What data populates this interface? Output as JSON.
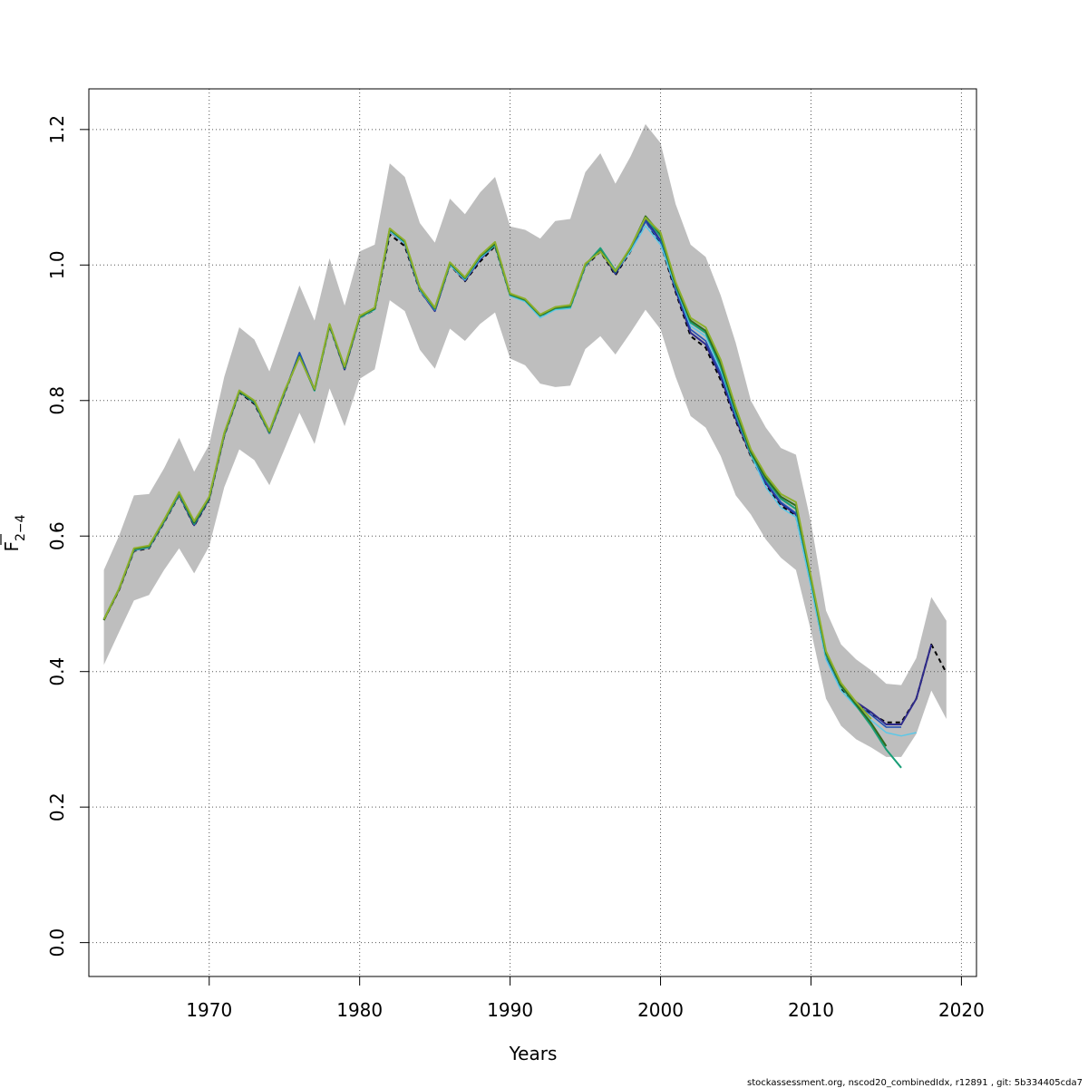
{
  "chart_data": {
    "type": "line",
    "title": "",
    "xlabel": "Years",
    "ylabel_base": "F",
    "ylabel_sub": "2−4",
    "xlim": [
      1962,
      2021
    ],
    "ylim": [
      -0.05,
      1.26
    ],
    "x_ticks": [
      1970,
      1980,
      1990,
      2000,
      2010,
      2020
    ],
    "y_ticks": [
      0.0,
      0.2,
      0.4,
      0.6,
      0.8,
      1.0,
      1.2
    ],
    "y_tick_labels": [
      "0.0",
      "0.2",
      "0.4",
      "0.6",
      "0.8",
      "1.0",
      "1.2"
    ],
    "grid": true,
    "confidence_band": {
      "x": [
        1963,
        1964,
        1965,
        1966,
        1967,
        1968,
        1969,
        1970,
        1971,
        1972,
        1973,
        1974,
        1975,
        1976,
        1977,
        1978,
        1979,
        1980,
        1981,
        1982,
        1983,
        1984,
        1985,
        1986,
        1987,
        1988,
        1989,
        1990,
        1991,
        1992,
        1993,
        1994,
        1995,
        1996,
        1997,
        1998,
        1999,
        2000,
        2001,
        2002,
        2003,
        2004,
        2005,
        2006,
        2007,
        2008,
        2009,
        2010,
        2011,
        2012,
        2013,
        2014,
        2015,
        2016,
        2017,
        2018,
        2019
      ],
      "upper": [
        0.55,
        0.6,
        0.66,
        0.662,
        0.7,
        0.745,
        0.695,
        0.735,
        0.835,
        0.908,
        0.89,
        0.843,
        0.906,
        0.97,
        0.918,
        1.01,
        0.94,
        1.02,
        1.03,
        1.15,
        1.13,
        1.062,
        1.033,
        1.098,
        1.075,
        1.107,
        1.13,
        1.057,
        1.052,
        1.039,
        1.065,
        1.068,
        1.137,
        1.165,
        1.12,
        1.16,
        1.208,
        1.18,
        1.09,
        1.03,
        1.012,
        0.955,
        0.885,
        0.8,
        0.76,
        0.73,
        0.72,
        0.62,
        0.49,
        0.44,
        0.418,
        0.402,
        0.382,
        0.38,
        0.42,
        0.51,
        0.475
      ],
      "lower": [
        0.41,
        0.458,
        0.505,
        0.513,
        0.55,
        0.582,
        0.545,
        0.585,
        0.672,
        0.728,
        0.712,
        0.675,
        0.728,
        0.782,
        0.736,
        0.818,
        0.762,
        0.832,
        0.846,
        0.948,
        0.932,
        0.875,
        0.847,
        0.906,
        0.888,
        0.913,
        0.93,
        0.862,
        0.852,
        0.825,
        0.82,
        0.822,
        0.876,
        0.895,
        0.868,
        0.9,
        0.934,
        0.905,
        0.835,
        0.777,
        0.76,
        0.718,
        0.66,
        0.632,
        0.595,
        0.568,
        0.55,
        0.46,
        0.36,
        0.32,
        0.3,
        0.288,
        0.274,
        0.274,
        0.308,
        0.372,
        0.33
      ]
    },
    "series": [
      {
        "color": "#000000",
        "dashed": true,
        "width": 2,
        "x": [
          1963,
          1964,
          1965,
          1966,
          1967,
          1968,
          1969,
          1970,
          1971,
          1972,
          1973,
          1974,
          1975,
          1976,
          1977,
          1978,
          1979,
          1980,
          1981,
          1982,
          1983,
          1984,
          1985,
          1986,
          1987,
          1988,
          1989,
          1990,
          1991,
          1992,
          1993,
          1994,
          1995,
          1996,
          1997,
          1998,
          1999,
          2000,
          2001,
          2002,
          2003,
          2004,
          2005,
          2006,
          2007,
          2008,
          2009,
          2010,
          2011,
          2012,
          2013,
          2014,
          2015,
          2016,
          2017,
          2018,
          2019
        ],
        "y": [
          0.476,
          0.52,
          0.578,
          0.582,
          0.62,
          0.66,
          0.615,
          0.654,
          0.748,
          0.812,
          0.795,
          0.752,
          0.81,
          0.868,
          0.815,
          0.91,
          0.846,
          0.922,
          0.934,
          1.045,
          1.028,
          0.962,
          0.933,
          1.0,
          0.976,
          1.005,
          1.028,
          0.955,
          0.948,
          0.925,
          0.935,
          0.937,
          0.998,
          1.02,
          0.985,
          1.02,
          1.065,
          1.032,
          0.96,
          0.895,
          0.878,
          0.83,
          0.77,
          0.718,
          0.675,
          0.645,
          0.63,
          0.528,
          0.42,
          0.375,
          0.352,
          0.338,
          0.325,
          0.325,
          0.36,
          0.44,
          0.398
        ]
      },
      {
        "color": "#2E2A8A",
        "dashed": false,
        "width": 2,
        "x": [
          1963,
          1964,
          1965,
          1966,
          1967,
          1968,
          1969,
          1970,
          1971,
          1972,
          1973,
          1974,
          1975,
          1976,
          1977,
          1978,
          1979,
          1980,
          1981,
          1982,
          1983,
          1984,
          1985,
          1986,
          1987,
          1988,
          1989,
          1990,
          1991,
          1992,
          1993,
          1994,
          1995,
          1996,
          1997,
          1998,
          1999,
          2000,
          2001,
          2002,
          2003,
          2004,
          2005,
          2006,
          2007,
          2008,
          2009,
          2010,
          2011,
          2012,
          2013,
          2014,
          2015,
          2016,
          2017,
          2018
        ],
        "y": [
          0.477,
          0.521,
          0.579,
          0.583,
          0.621,
          0.661,
          0.616,
          0.655,
          0.749,
          0.813,
          0.797,
          0.752,
          0.811,
          0.87,
          0.816,
          0.912,
          0.846,
          0.923,
          0.935,
          1.05,
          1.032,
          0.963,
          0.932,
          1.001,
          0.977,
          1.008,
          1.03,
          0.956,
          0.949,
          0.926,
          0.936,
          0.938,
          0.999,
          1.022,
          0.987,
          1.022,
          1.068,
          1.036,
          0.963,
          0.9,
          0.883,
          0.835,
          0.773,
          0.72,
          0.678,
          0.648,
          0.632,
          0.53,
          0.422,
          0.378,
          0.355,
          0.34,
          0.322,
          0.322,
          0.36,
          0.44
        ]
      },
      {
        "color": "#1F4FB5",
        "dashed": false,
        "width": 1.5,
        "x": [
          1963,
          1964,
          1965,
          1966,
          1967,
          1968,
          1969,
          1970,
          1971,
          1972,
          1973,
          1974,
          1975,
          1976,
          1977,
          1978,
          1979,
          1980,
          1981,
          1982,
          1983,
          1984,
          1985,
          1986,
          1987,
          1988,
          1989,
          1990,
          1991,
          1992,
          1993,
          1994,
          1995,
          1996,
          1997,
          1998,
          1999,
          2000,
          2001,
          2002,
          2003,
          2004,
          2005,
          2006,
          2007,
          2008,
          2009,
          2010,
          2011,
          2012,
          2013,
          2014,
          2015,
          2016
        ],
        "y": [
          0.478,
          0.522,
          0.58,
          0.584,
          0.622,
          0.662,
          0.617,
          0.656,
          0.75,
          0.814,
          0.798,
          0.753,
          0.812,
          0.871,
          0.817,
          0.913,
          0.847,
          0.924,
          0.936,
          1.051,
          1.033,
          0.964,
          0.933,
          1.002,
          0.978,
          1.009,
          1.031,
          0.957,
          0.95,
          0.927,
          0.937,
          0.939,
          1.0,
          1.023,
          0.988,
          1.023,
          1.064,
          1.034,
          0.965,
          0.905,
          0.888,
          0.84,
          0.776,
          0.722,
          0.68,
          0.65,
          0.634,
          0.532,
          0.424,
          0.38,
          0.352,
          0.336,
          0.318,
          0.318
        ]
      },
      {
        "color": "#5BC8E8",
        "dashed": false,
        "width": 1.5,
        "x": [
          1963,
          1964,
          1965,
          1966,
          1967,
          1968,
          1969,
          1970,
          1971,
          1972,
          1973,
          1974,
          1975,
          1976,
          1977,
          1978,
          1979,
          1980,
          1981,
          1982,
          1983,
          1984,
          1985,
          1986,
          1987,
          1988,
          1989,
          1990,
          1991,
          1992,
          1993,
          1994,
          1995,
          1996,
          1997,
          1998,
          1999,
          2000,
          2001,
          2002,
          2003,
          2004,
          2005,
          2006,
          2007,
          2008,
          2009,
          2010,
          2011,
          2012,
          2013,
          2014,
          2015,
          2016,
          2017
        ],
        "y": [
          0.477,
          0.521,
          0.579,
          0.583,
          0.621,
          0.661,
          0.618,
          0.656,
          0.749,
          0.813,
          0.797,
          0.752,
          0.811,
          0.866,
          0.814,
          0.91,
          0.848,
          0.922,
          0.934,
          1.05,
          1.032,
          0.963,
          0.934,
          1.0,
          0.978,
          1.01,
          1.029,
          0.954,
          0.946,
          0.922,
          0.934,
          0.936,
          0.998,
          1.024,
          0.99,
          1.02,
          1.058,
          1.03,
          0.968,
          0.91,
          0.895,
          0.845,
          0.78,
          0.72,
          0.672,
          0.642,
          0.628,
          0.525,
          0.418,
          0.372,
          0.348,
          0.328,
          0.31,
          0.305,
          0.31
        ]
      },
      {
        "color": "#1A9E77",
        "dashed": false,
        "width": 2,
        "x": [
          1963,
          1964,
          1965,
          1966,
          1967,
          1968,
          1969,
          1970,
          1971,
          1972,
          1973,
          1974,
          1975,
          1976,
          1977,
          1978,
          1979,
          1980,
          1981,
          1982,
          1983,
          1984,
          1985,
          1986,
          1987,
          1988,
          1989,
          1990,
          1991,
          1992,
          1993,
          1994,
          1995,
          1996,
          1997,
          1998,
          1999,
          2000,
          2001,
          2002,
          2003,
          2004,
          2005,
          2006,
          2007,
          2008,
          2009,
          2010,
          2011,
          2012,
          2013,
          2014,
          2015,
          2016
        ],
        "y": [
          0.477,
          0.522,
          0.58,
          0.584,
          0.622,
          0.662,
          0.618,
          0.656,
          0.75,
          0.813,
          0.798,
          0.753,
          0.812,
          0.866,
          0.815,
          0.911,
          0.848,
          0.923,
          0.935,
          1.052,
          1.034,
          0.965,
          0.935,
          1.002,
          0.98,
          1.012,
          1.03,
          0.956,
          0.948,
          0.925,
          0.936,
          0.938,
          1.0,
          1.025,
          0.992,
          1.024,
          1.07,
          1.042,
          0.97,
          0.915,
          0.9,
          0.85,
          0.782,
          0.722,
          0.684,
          0.655,
          0.64,
          0.535,
          0.425,
          0.378,
          0.35,
          0.32,
          0.285,
          0.258
        ]
      },
      {
        "color": "#2F6B1F",
        "dashed": false,
        "width": 2,
        "x": [
          1963,
          1964,
          1965,
          1966,
          1967,
          1968,
          1969,
          1970,
          1971,
          1972,
          1973,
          1974,
          1975,
          1976,
          1977,
          1978,
          1979,
          1980,
          1981,
          1982,
          1983,
          1984,
          1985,
          1986,
          1987,
          1988,
          1989,
          1990,
          1991,
          1992,
          1993,
          1994,
          1995,
          1996,
          1997,
          1998,
          1999,
          2000,
          2001,
          2002,
          2003,
          2004,
          2005,
          2006,
          2007,
          2008,
          2009,
          2010,
          2011,
          2012,
          2013,
          2014,
          2015
        ],
        "y": [
          0.476,
          0.521,
          0.581,
          0.585,
          0.623,
          0.664,
          0.62,
          0.657,
          0.751,
          0.814,
          0.799,
          0.754,
          0.813,
          0.865,
          0.816,
          0.912,
          0.849,
          0.924,
          0.936,
          1.053,
          1.035,
          0.966,
          0.936,
          1.003,
          0.981,
          1.013,
          1.032,
          0.957,
          0.949,
          0.926,
          0.937,
          0.94,
          1.001,
          1.021,
          0.99,
          1.025,
          1.072,
          1.046,
          0.972,
          0.918,
          0.903,
          0.855,
          0.786,
          0.725,
          0.686,
          0.658,
          0.645,
          0.538,
          0.428,
          0.38,
          0.352,
          0.324,
          0.29
        ]
      },
      {
        "color": "#8DB02C",
        "dashed": false,
        "width": 2,
        "x": [
          1963,
          1964,
          1965,
          1966,
          1967,
          1968,
          1969,
          1970,
          1971,
          1972,
          1973,
          1974,
          1975,
          1976,
          1977,
          1978,
          1979,
          1980,
          1981,
          1982,
          1983,
          1984,
          1985,
          1986,
          1987,
          1988,
          1989,
          1990,
          1991,
          1992,
          1993,
          1994,
          1995,
          1996,
          1997,
          1998,
          1999,
          2000,
          2001,
          2002,
          2003,
          2004,
          2005,
          2006,
          2007,
          2008,
          2009,
          2010,
          2011,
          2012,
          2013,
          2014
        ],
        "y": [
          0.477,
          0.522,
          0.582,
          0.586,
          0.624,
          0.665,
          0.622,
          0.658,
          0.752,
          0.815,
          0.8,
          0.755,
          0.814,
          0.864,
          0.817,
          0.913,
          0.85,
          0.925,
          0.937,
          1.054,
          1.036,
          0.967,
          0.937,
          1.004,
          0.982,
          1.014,
          1.034,
          0.958,
          0.95,
          0.927,
          0.938,
          0.941,
          1.002,
          1.02,
          0.991,
          1.026,
          1.07,
          1.048,
          0.975,
          0.922,
          0.908,
          0.86,
          0.79,
          0.728,
          0.69,
          0.662,
          0.65,
          0.54,
          0.43,
          0.383,
          0.355,
          0.33
        ]
      }
    ]
  },
  "footer": "stockassessment.org, nscod20_combinedIdx, r12891 , git: 5b334405cda7"
}
